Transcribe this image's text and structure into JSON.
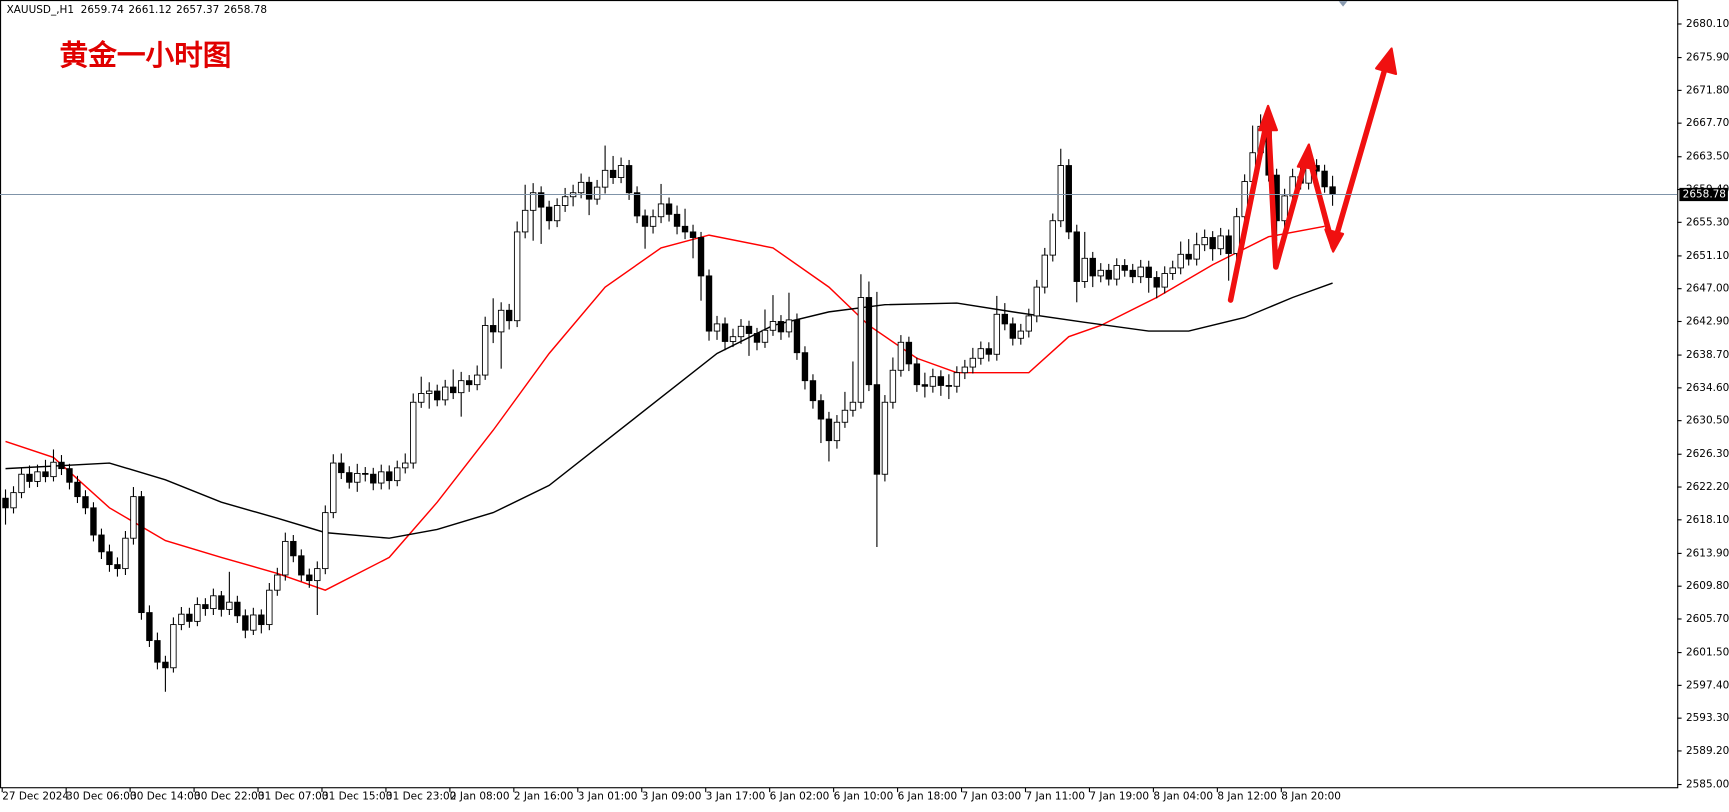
{
  "chart_data": {
    "type": "candlestick",
    "symbol": "XAUUSD_,H1",
    "title": "黄金一小时图",
    "up_color": "#ffffff",
    "down_color": "#000000",
    "price_line_color": "#7f93a8",
    "ylim": [
      2584.6,
      2683.1
    ],
    "yticks": [
      {
        "value": 2680.1,
        "label": "2680.10"
      },
      {
        "value": 2675.9,
        "label": "2675.90"
      },
      {
        "value": 2671.8,
        "label": "2671.80"
      },
      {
        "value": 2667.7,
        "label": "2667.70"
      },
      {
        "value": 2663.5,
        "label": "2663.50"
      },
      {
        "value": 2659.4,
        "label": "2659.40"
      },
      {
        "value": 2655.3,
        "label": "2655.30"
      },
      {
        "value": 2651.1,
        "label": "2651.10"
      },
      {
        "value": 2647,
        "label": "2647.00"
      },
      {
        "value": 2642.9,
        "label": "2642.90"
      },
      {
        "value": 2638.7,
        "label": "2638.70"
      },
      {
        "value": 2634.6,
        "label": "2634.60"
      },
      {
        "value": 2630.5,
        "label": "2630.50"
      },
      {
        "value": 2626.3,
        "label": "2626.30"
      },
      {
        "value": 2622.2,
        "label": "2622.20"
      },
      {
        "value": 2618.1,
        "label": "2618.10"
      },
      {
        "value": 2613.9,
        "label": "2613.90"
      },
      {
        "value": 2609.8,
        "label": "2609.80"
      },
      {
        "value": 2605.7,
        "label": "2605.70"
      },
      {
        "value": 2601.5,
        "label": "2601.50"
      },
      {
        "value": 2597.4,
        "label": "2597.40"
      },
      {
        "value": 2593.3,
        "label": "2593.30"
      },
      {
        "value": 2589.2,
        "label": "2589.20"
      },
      {
        "value": 2585,
        "label": "2585.00"
      }
    ],
    "x_labels": [
      "27 Dec 2024",
      "30 Dec 06:00",
      "30 Dec 14:00",
      "30 Dec 22:00",
      "31 Dec 07:00",
      "31 Dec 15:00",
      "31 Dec 23:00",
      "2 Jan 08:00",
      "2 Jan 16:00",
      "3 Jan 01:00",
      "3 Jan 09:00",
      "3 Jan 17:00",
      "6 Jan 02:00",
      "6 Jan 10:00",
      "6 Jan 18:00",
      "7 Jan 03:00",
      "7 Jan 11:00",
      "7 Jan 19:00",
      "8 Jan 04:00",
      "8 Jan 12:00",
      "8 Jan 20:00"
    ],
    "candles": [
      [
        2620.8,
        2621.9,
        2617.5,
        2619.6
      ],
      [
        2619.6,
        2622.3,
        2618.9,
        2621.5
      ],
      [
        2621.5,
        2624.6,
        2620.8,
        2623.8
      ],
      [
        2623.8,
        2624.9,
        2622.1,
        2622.9
      ],
      [
        2622.9,
        2625.0,
        2622.2,
        2624.1
      ],
      [
        2624.1,
        2625.6,
        2622.8,
        2623.5
      ],
      [
        2623.5,
        2626.9,
        2622.9,
        2625.3
      ],
      [
        2625.3,
        2626.2,
        2623.7,
        2624.5
      ],
      [
        2624.5,
        2625.1,
        2621.9,
        2622.8
      ],
      [
        2622.8,
        2623.6,
        2620.2,
        2621.0
      ],
      [
        2621.0,
        2621.8,
        2618.8,
        2619.6
      ],
      [
        2619.6,
        2620.3,
        2615.4,
        2616.2
      ],
      [
        2616.2,
        2617.0,
        2613.2,
        2614.1
      ],
      [
        2614.1,
        2615.0,
        2611.6,
        2612.5
      ],
      [
        2612.5,
        2613.4,
        2611.0,
        2612.0
      ],
      [
        2612.0,
        2616.7,
        2611.2,
        2615.8
      ],
      [
        2615.8,
        2622.2,
        2615.0,
        2621.0
      ],
      [
        2621.0,
        2621.7,
        2605.6,
        2606.5
      ],
      [
        2606.5,
        2607.4,
        2602.2,
        2603.0
      ],
      [
        2603.0,
        2604.0,
        2599.4,
        2600.3
      ],
      [
        2600.3,
        2601.1,
        2596.6,
        2599.6
      ],
      [
        2599.6,
        2605.9,
        2599.0,
        2605.0
      ],
      [
        2605.0,
        2607.2,
        2604.3,
        2606.3
      ],
      [
        2606.3,
        2607.1,
        2604.6,
        2605.4
      ],
      [
        2605.4,
        2608.4,
        2604.8,
        2607.5
      ],
      [
        2607.5,
        2608.3,
        2606.1,
        2607.0
      ],
      [
        2607.0,
        2609.5,
        2606.2,
        2608.6
      ],
      [
        2608.6,
        2609.2,
        2606.0,
        2606.9
      ],
      [
        2606.9,
        2611.6,
        2606.2,
        2607.8
      ],
      [
        2607.8,
        2608.6,
        2605.2,
        2606.1
      ],
      [
        2606.1,
        2606.9,
        2603.3,
        2604.3
      ],
      [
        2604.3,
        2607.1,
        2603.7,
        2606.2
      ],
      [
        2606.2,
        2606.9,
        2603.9,
        2605.0
      ],
      [
        2605.0,
        2610.2,
        2604.3,
        2609.3
      ],
      [
        2609.3,
        2612.1,
        2608.6,
        2611.2
      ],
      [
        2611.2,
        2616.5,
        2610.5,
        2615.4
      ],
      [
        2615.4,
        2616.2,
        2612.8,
        2613.6
      ],
      [
        2613.6,
        2614.4,
        2610.4,
        2611.2
      ],
      [
        2611.2,
        2612.0,
        2609.6,
        2610.5
      ],
      [
        2610.5,
        2612.9,
        2606.2,
        2612.0
      ],
      [
        2612.0,
        2619.9,
        2611.3,
        2619.0
      ],
      [
        2619.0,
        2626.3,
        2618.3,
        2625.2
      ],
      [
        2625.2,
        2626.4,
        2623.2,
        2624.0
      ],
      [
        2624.0,
        2624.8,
        2622.0,
        2622.8
      ],
      [
        2622.8,
        2625.1,
        2621.6,
        2623.9
      ],
      [
        2623.9,
        2624.7,
        2622.9,
        2623.8
      ],
      [
        2623.8,
        2624.6,
        2621.8,
        2622.7
      ],
      [
        2622.7,
        2625.0,
        2621.9,
        2624.1
      ],
      [
        2624.1,
        2624.9,
        2621.9,
        2623.0
      ],
      [
        2623.0,
        2625.5,
        2622.3,
        2624.6
      ],
      [
        2624.6,
        2626.4,
        2623.9,
        2625.2
      ],
      [
        2625.2,
        2633.9,
        2624.5,
        2632.8
      ],
      [
        2632.8,
        2636.0,
        2632.1,
        2633.9
      ],
      [
        2633.9,
        2635.3,
        2632.0,
        2634.2
      ],
      [
        2634.2,
        2635.0,
        2632.3,
        2633.1
      ],
      [
        2633.1,
        2635.6,
        2632.4,
        2634.7
      ],
      [
        2634.7,
        2636.9,
        2633.2,
        2634.0
      ],
      [
        2634.0,
        2636.6,
        2631.0,
        2635.5
      ],
      [
        2635.5,
        2636.2,
        2634.1,
        2635.0
      ],
      [
        2635.0,
        2637.4,
        2634.3,
        2636.2
      ],
      [
        2636.2,
        2643.5,
        2635.6,
        2642.4
      ],
      [
        2642.4,
        2645.8,
        2640.2,
        2641.6
      ],
      [
        2641.6,
        2645.3,
        2637.0,
        2644.3
      ],
      [
        2644.3,
        2645.1,
        2641.9,
        2643.0
      ],
      [
        2643.0,
        2655.4,
        2642.2,
        2654.1
      ],
      [
        2654.1,
        2660.0,
        2653.3,
        2656.8
      ],
      [
        2656.8,
        2660.2,
        2653.0,
        2659.0
      ],
      [
        2659.0,
        2659.8,
        2652.6,
        2657.2
      ],
      [
        2657.2,
        2658.0,
        2654.4,
        2655.5
      ],
      [
        2655.5,
        2658.3,
        2654.7,
        2657.4
      ],
      [
        2657.4,
        2659.6,
        2656.6,
        2658.5
      ],
      [
        2658.5,
        2660.0,
        2657.3,
        2659.0
      ],
      [
        2659.0,
        2661.4,
        2658.3,
        2660.3
      ],
      [
        2660.3,
        2661.0,
        2656.2,
        2658.2
      ],
      [
        2658.2,
        2660.6,
        2657.5,
        2659.7
      ],
      [
        2659.7,
        2664.9,
        2658.9,
        2661.8
      ],
      [
        2661.8,
        2663.6,
        2660.1,
        2660.9
      ],
      [
        2660.9,
        2663.4,
        2660.2,
        2662.4
      ],
      [
        2662.4,
        2663.1,
        2658.1,
        2659.0
      ],
      [
        2659.0,
        2659.8,
        2655.2,
        2656.1
      ],
      [
        2656.1,
        2656.9,
        2652.0,
        2654.8
      ],
      [
        2654.8,
        2656.9,
        2653.9,
        2656.0
      ],
      [
        2656.0,
        2660.1,
        2655.2,
        2657.6
      ],
      [
        2657.6,
        2658.4,
        2655.4,
        2656.3
      ],
      [
        2656.3,
        2657.4,
        2653.8,
        2654.8
      ],
      [
        2654.8,
        2657.0,
        2653.2,
        2654.1
      ],
      [
        2654.1,
        2655.0,
        2650.8,
        2653.4
      ],
      [
        2653.4,
        2654.1,
        2645.5,
        2648.6
      ],
      [
        2648.6,
        2649.4,
        2640.5,
        2641.7
      ],
      [
        2641.7,
        2643.6,
        2640.6,
        2642.6
      ],
      [
        2642.6,
        2643.4,
        2639.3,
        2640.4
      ],
      [
        2640.4,
        2642.0,
        2639.7,
        2641.0
      ],
      [
        2641.0,
        2643.2,
        2640.1,
        2642.3
      ],
      [
        2642.3,
        2643.0,
        2638.6,
        2641.4
      ],
      [
        2641.4,
        2642.1,
        2639.3,
        2640.3
      ],
      [
        2640.3,
        2644.4,
        2639.6,
        2641.8
      ],
      [
        2641.8,
        2646.2,
        2641.1,
        2642.9
      ],
      [
        2642.9,
        2643.7,
        2640.6,
        2641.6
      ],
      [
        2641.6,
        2646.5,
        2640.9,
        2643.1
      ],
      [
        2643.1,
        2643.9,
        2638.1,
        2639.0
      ],
      [
        2639.0,
        2639.8,
        2634.4,
        2635.5
      ],
      [
        2635.5,
        2636.3,
        2632.0,
        2633.0
      ],
      [
        2633.0,
        2633.8,
        2627.7,
        2630.7
      ],
      [
        2630.7,
        2631.6,
        2625.4,
        2628.0
      ],
      [
        2628.0,
        2631.2,
        2627.0,
        2630.3
      ],
      [
        2630.3,
        2634.1,
        2629.6,
        2631.8
      ],
      [
        2631.8,
        2637.9,
        2631.0,
        2632.8
      ],
      [
        2632.8,
        2648.8,
        2632.0,
        2645.9
      ],
      [
        2645.9,
        2647.9,
        2634.2,
        2635.0
      ],
      [
        2635.0,
        2646.6,
        2614.7,
        2623.8
      ],
      [
        2623.8,
        2633.7,
        2622.9,
        2632.8
      ],
      [
        2632.8,
        2638.4,
        2632.0,
        2636.8
      ],
      [
        2636.8,
        2641.2,
        2636.0,
        2640.3
      ],
      [
        2640.3,
        2641.0,
        2636.7,
        2637.6
      ],
      [
        2637.6,
        2638.4,
        2634.1,
        2635.0
      ],
      [
        2635.0,
        2636.5,
        2633.4,
        2634.8
      ],
      [
        2634.8,
        2637.0,
        2634.0,
        2636.0
      ],
      [
        2636.0,
        2636.8,
        2633.6,
        2634.9
      ],
      [
        2634.9,
        2636.3,
        2633.2,
        2634.8
      ],
      [
        2634.8,
        2637.3,
        2634.0,
        2636.5
      ],
      [
        2636.5,
        2638.1,
        2635.7,
        2637.2
      ],
      [
        2637.2,
        2639.6,
        2636.4,
        2638.3
      ],
      [
        2638.3,
        2640.4,
        2637.5,
        2639.5
      ],
      [
        2639.5,
        2640.3,
        2637.9,
        2638.8
      ],
      [
        2638.8,
        2646.1,
        2638.0,
        2643.8
      ],
      [
        2643.8,
        2645.2,
        2641.8,
        2642.6
      ],
      [
        2642.6,
        2643.4,
        2639.9,
        2640.8
      ],
      [
        2640.8,
        2642.6,
        2640.0,
        2641.7
      ],
      [
        2641.7,
        2644.5,
        2640.9,
        2643.6
      ],
      [
        2643.6,
        2648.1,
        2642.8,
        2647.2
      ],
      [
        2647.2,
        2652.1,
        2646.4,
        2651.2
      ],
      [
        2651.2,
        2656.4,
        2650.4,
        2655.5
      ],
      [
        2655.5,
        2664.5,
        2654.7,
        2662.4
      ],
      [
        2662.4,
        2663.2,
        2653.2,
        2654.1
      ],
      [
        2654.1,
        2655.0,
        2645.3,
        2647.9
      ],
      [
        2647.9,
        2654.1,
        2647.1,
        2650.8
      ],
      [
        2650.8,
        2651.6,
        2647.2,
        2648.6
      ],
      [
        2648.6,
        2650.2,
        2647.8,
        2649.3
      ],
      [
        2649.3,
        2650.1,
        2647.4,
        2648.2
      ],
      [
        2648.2,
        2650.8,
        2647.4,
        2649.9
      ],
      [
        2649.9,
        2650.7,
        2648.5,
        2649.3
      ],
      [
        2649.3,
        2650.1,
        2647.7,
        2648.5
      ],
      [
        2648.5,
        2650.6,
        2647.7,
        2649.7
      ],
      [
        2649.7,
        2650.5,
        2646.5,
        2648.4
      ],
      [
        2648.4,
        2649.2,
        2645.8,
        2647.2
      ],
      [
        2647.2,
        2649.8,
        2646.4,
        2648.9
      ],
      [
        2648.9,
        2650.5,
        2648.1,
        2649.6
      ],
      [
        2649.6,
        2652.9,
        2648.8,
        2651.3
      ],
      [
        2651.3,
        2653.2,
        2649.9,
        2650.7
      ],
      [
        2650.7,
        2654.0,
        2649.9,
        2652.5
      ],
      [
        2652.5,
        2654.4,
        2651.7,
        2653.4
      ],
      [
        2653.4,
        2654.2,
        2650.5,
        2652.0
      ],
      [
        2652.0,
        2654.6,
        2651.2,
        2653.6
      ],
      [
        2653.6,
        2654.4,
        2648.0,
        2651.4
      ],
      [
        2651.4,
        2657.1,
        2650.6,
        2656.0
      ],
      [
        2656.0,
        2661.3,
        2655.2,
        2660.4
      ],
      [
        2660.4,
        2667.4,
        2659.6,
        2664.0
      ],
      [
        2664.0,
        2668.8,
        2663.2,
        2667.3
      ],
      [
        2667.3,
        2668.1,
        2660.4,
        2661.2
      ],
      [
        2661.2,
        2662.0,
        2653.0,
        2655.5
      ],
      [
        2655.5,
        2659.5,
        2654.7,
        2658.6
      ],
      [
        2658.6,
        2662.0,
        2657.8,
        2661.0
      ],
      [
        2661.0,
        2663.0,
        2659.4,
        2660.2
      ],
      [
        2660.2,
        2663.3,
        2659.4,
        2662.4
      ],
      [
        2662.4,
        2663.2,
        2660.9,
        2661.7
      ],
      [
        2661.7,
        2662.5,
        2659.0,
        2659.74
      ],
      [
        2659.74,
        2661.12,
        2657.37,
        2658.78
      ]
    ],
    "ma": [
      {
        "color": "#ff0000",
        "x": [
          0,
          6,
          13,
          20,
          27,
          34,
          40,
          48,
          54,
          61,
          68,
          75,
          82,
          88,
          96,
          103,
          108,
          114,
          119,
          128,
          133,
          137,
          144,
          151,
          158,
          165
        ],
        "values": [
          2627.9,
          2625.9,
          2619.6,
          2615.5,
          2613.4,
          2611.4,
          2609.3,
          2613.4,
          2620.3,
          2629.3,
          2638.9,
          2647.2,
          2652.1,
          2653.7,
          2652.1,
          2647.2,
          2642.4,
          2638.3,
          2636.5,
          2636.5,
          2641.0,
          2642.4,
          2645.9,
          2650.0,
          2653.5,
          2654.8
        ]
      },
      {
        "color": "#000000",
        "x": [
          0,
          13,
          20,
          27,
          34,
          40,
          48,
          54,
          61,
          68,
          75,
          82,
          89,
          96,
          103,
          110,
          119,
          126,
          135,
          143,
          148,
          155,
          161,
          166
        ],
        "values": [
          2624.5,
          2625.2,
          2623.1,
          2620.3,
          2618.3,
          2616.5,
          2615.8,
          2616.9,
          2619.0,
          2622.4,
          2627.9,
          2633.4,
          2638.9,
          2642.4,
          2644.1,
          2645.0,
          2645.2,
          2644.1,
          2642.8,
          2641.7,
          2641.7,
          2643.4,
          2645.9,
          2647.7
        ]
      }
    ]
  }
}
